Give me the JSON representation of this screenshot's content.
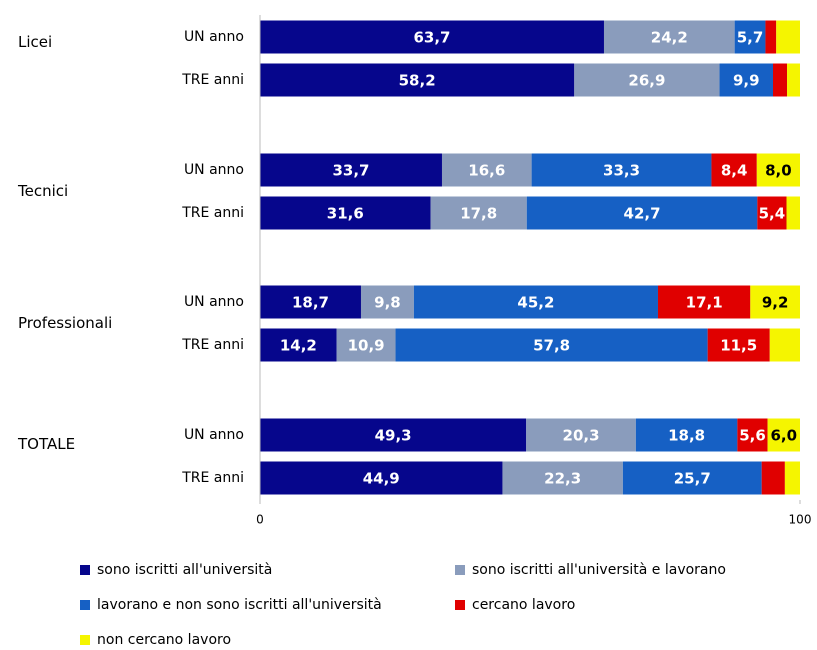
{
  "chart_data": {
    "type": "stacked-bar-horizontal",
    "groups": [
      "Licei",
      "Tecnici",
      "Professionali",
      "TOTALE"
    ],
    "categories": [
      "UN anno",
      "TRE anni",
      "UN anno",
      "TRE anni",
      "UN anno",
      "TRE anni",
      "UN anno",
      "TRE anni"
    ],
    "series": [
      {
        "name": "sono iscritti all'università",
        "color": "#06068c",
        "values": [
          63.7,
          58.2,
          33.7,
          31.6,
          18.7,
          14.2,
          49.3,
          44.9
        ],
        "value_labels": [
          "63,7",
          "58,2",
          "33,7",
          "31,6",
          "18,7",
          "14,2",
          "49,3",
          "44,9"
        ]
      },
      {
        "name": "sono iscritti all'università e lavorano",
        "color": "#8a9cbc",
        "values": [
          24.2,
          26.9,
          16.6,
          17.8,
          9.8,
          10.9,
          20.3,
          22.3
        ],
        "value_labels": [
          "24,2",
          "26,9",
          "16,6",
          "17,8",
          "9,8",
          "10,9",
          "20,3",
          "22,3"
        ]
      },
      {
        "name": "lavorano e non sono iscritti all'università",
        "color": "#1660c4",
        "values": [
          5.7,
          9.9,
          33.3,
          42.7,
          45.2,
          57.8,
          18.8,
          25.7
        ],
        "value_labels": [
          "5,7",
          "9,9",
          "33,3",
          "42,7",
          "45,2",
          "57,8",
          "18,8",
          "25,7"
        ]
      },
      {
        "name": "cercano lavoro",
        "color": "#e00000",
        "values": [
          2.0,
          2.6,
          8.4,
          5.4,
          17.1,
          11.5,
          5.6,
          4.3
        ],
        "value_labels": [
          null,
          null,
          "8,4",
          "5,4",
          "17,1",
          "11,5",
          "5,6",
          null
        ]
      },
      {
        "name": "non cercano lavoro",
        "color": "#f5f500",
        "values": [
          4.4,
          2.4,
          8.0,
          2.5,
          9.2,
          5.6,
          6.0,
          2.8
        ],
        "value_labels": [
          null,
          null,
          "8,0",
          null,
          "9,2",
          null,
          "6,0",
          null
        ]
      }
    ],
    "xlim": [
      0,
      100
    ],
    "xticks": [
      0,
      100
    ]
  }
}
